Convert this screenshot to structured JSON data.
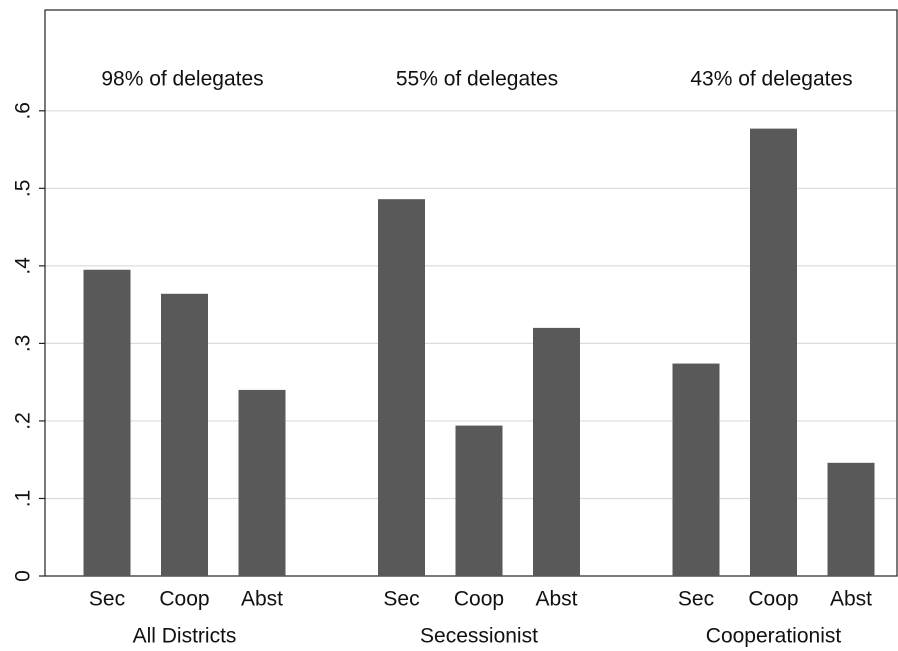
{
  "chart_data": {
    "type": "bar",
    "groups": [
      {
        "name": "All Districts",
        "annotation": "98% of delegates",
        "categories": [
          "Sec",
          "Coop",
          "Abst"
        ],
        "values": [
          0.395,
          0.364,
          0.24
        ]
      },
      {
        "name": "Secessionist",
        "annotation": "55% of delegates",
        "categories": [
          "Sec",
          "Coop",
          "Abst"
        ],
        "values": [
          0.486,
          0.194,
          0.32
        ]
      },
      {
        "name": "Cooperationist",
        "annotation": "43% of delegates",
        "categories": [
          "Sec",
          "Coop",
          "Abst"
        ],
        "values": [
          0.274,
          0.577,
          0.146
        ]
      }
    ],
    "color": "#595959",
    "ylim": [
      0,
      0.73
    ],
    "yticks": [
      0,
      {
        "value": 0.1,
        "label": ".1"
      },
      {
        "value": 0.2,
        "label": ".2"
      },
      {
        "value": 0.3,
        "label": ".3"
      },
      {
        "value": 0.4,
        "label": ".4"
      },
      {
        "value": 0.5,
        "label": ".5"
      },
      {
        "value": 0.6,
        "label": ".6"
      }
    ],
    "grid": true
  }
}
